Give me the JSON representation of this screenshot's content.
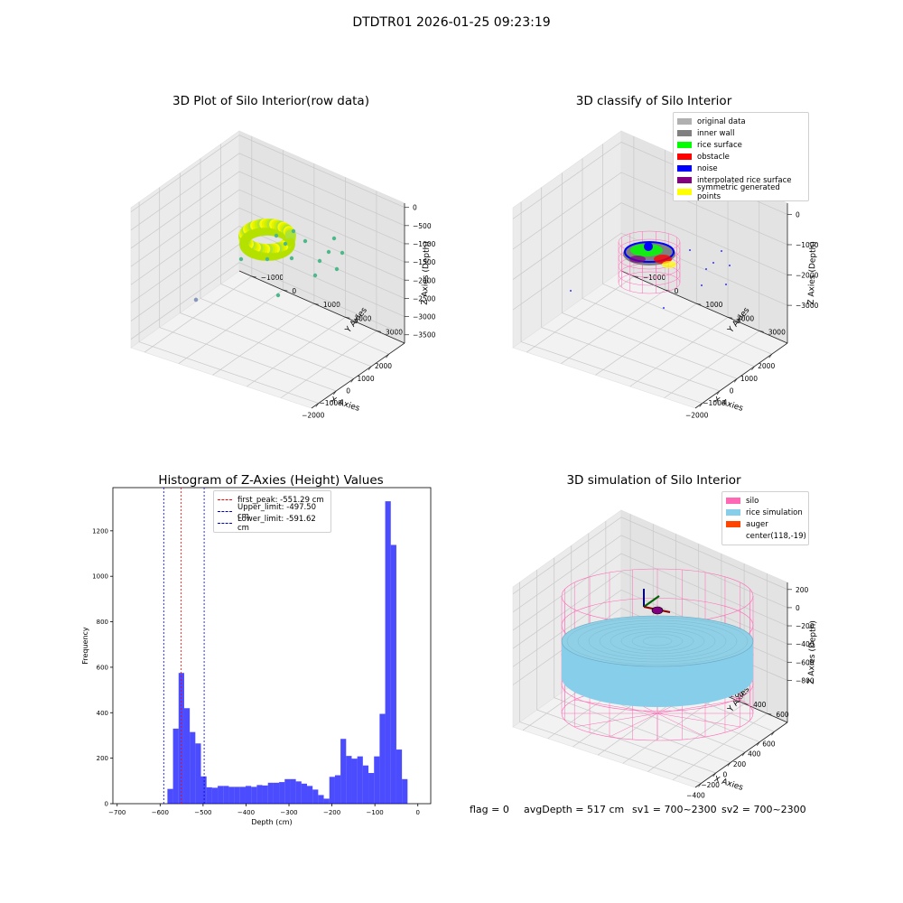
{
  "suptitle": "DTDTR01 2026-01-25 09:23:19",
  "colors": {
    "silo_wire": "#ff69b4",
    "rice_sim": "#87ceeb",
    "hist_bar": "#0000ff",
    "first_peak": "#ff0000",
    "limits": "#0000cc"
  },
  "plot_raw": {
    "title": "3D Plot of Silo Interior(row data)",
    "xlabel": "X Axies",
    "ylabel": "Y Axies",
    "zlabel": "Z Axies (Depth)",
    "xticks": [
      "−2000",
      "−1000",
      "0",
      "1000",
      "2000"
    ],
    "yticks": [
      "−1000",
      "0",
      "1000",
      "2000",
      "3000"
    ],
    "zticks": [
      "0",
      "−500",
      "−1000",
      "−1500",
      "−2000",
      "−2500",
      "−3000",
      "−3500"
    ]
  },
  "plot_classify": {
    "title": "3D classify of Silo Interior",
    "xlabel": "X Axies",
    "ylabel": "Y Axies",
    "zlabel": "Z Axies (Depth)",
    "xticks": [
      "−2000",
      "−1000",
      "0",
      "1000",
      "2000"
    ],
    "yticks": [
      "−1000",
      "0",
      "1000",
      "2000",
      "3000"
    ],
    "zticks": [
      "0",
      "−1000",
      "−2000",
      "−3000"
    ],
    "legend": [
      {
        "label": "original data",
        "color": "#b0b0b0"
      },
      {
        "label": "inner wall",
        "color": "#808080"
      },
      {
        "label": "rice surface",
        "color": "#00ff00"
      },
      {
        "label": "obstacle",
        "color": "#ff0000"
      },
      {
        "label": "noise",
        "color": "#0000ff"
      },
      {
        "label": "interpolated rice surface",
        "color": "#800080"
      },
      {
        "label": "symmetric generated points",
        "color": "#ffff00"
      }
    ]
  },
  "plot_sim": {
    "title": "3D simulation of Silo Interior",
    "xlabel": "X Axies",
    "ylabel": "Y Axies",
    "zlabel": "Z Axies (Depth)",
    "xticks": [
      "−400",
      "−200",
      "0",
      "200",
      "400",
      "600"
    ],
    "yticks": [
      "−600",
      "−400",
      "−200",
      "0",
      "200",
      "400",
      "600"
    ],
    "zticks": [
      "200",
      "0",
      "−200",
      "−400",
      "−600",
      "−800"
    ],
    "legend": [
      {
        "label": "silo",
        "color": "#ff69b4"
      },
      {
        "label": "rice simulation",
        "color": "#87ceeb"
      },
      {
        "label": "auger",
        "color": "#ff4500"
      },
      {
        "label": "center(118,-19)",
        "color": ""
      }
    ]
  },
  "chart_data": {
    "type": "bar",
    "title": "Histogram of Z-Axies (Height) Values",
    "xlabel": "Depth (cm)",
    "ylabel": "Frequency",
    "xlim": [
      -710,
      30
    ],
    "ylim": [
      0,
      1390
    ],
    "xticks": [
      -700,
      -600,
      -500,
      -400,
      -300,
      -200,
      -100,
      0
    ],
    "xtick_labels": [
      "−700",
      "−600",
      "−500",
      "−400",
      "−300",
      "−200",
      "−100",
      "0"
    ],
    "yticks": [
      0,
      200,
      400,
      600,
      800,
      1000,
      1200
    ],
    "bin_start": -583,
    "bin_width": 13,
    "values": [
      65,
      330,
      575,
      420,
      315,
      265,
      120,
      72,
      70,
      78,
      78,
      74,
      74,
      74,
      78,
      74,
      82,
      80,
      92,
      92,
      95,
      108,
      108,
      98,
      88,
      78,
      62,
      38,
      22,
      118,
      125,
      285,
      210,
      198,
      208,
      168,
      135,
      208,
      395,
      1330,
      1138,
      238,
      108
    ],
    "vlines": [
      {
        "label": "first_peak: -551.29 cm",
        "x": -551.29,
        "color": "#ff0000"
      },
      {
        "label": "Upper_limit: -497.50 cm",
        "x": -497.5,
        "color": "#0000cc"
      },
      {
        "label": "Lower_limit: -591.62 cm",
        "x": -591.62,
        "color": "#0000cc"
      }
    ],
    "legend_position": "top-center"
  },
  "footer": {
    "flag": "flag = 0",
    "avg": "avgDepth = 517 cm",
    "sv1": "sv1 = 700~2300",
    "sv2": "sv2 = 700~2300"
  }
}
